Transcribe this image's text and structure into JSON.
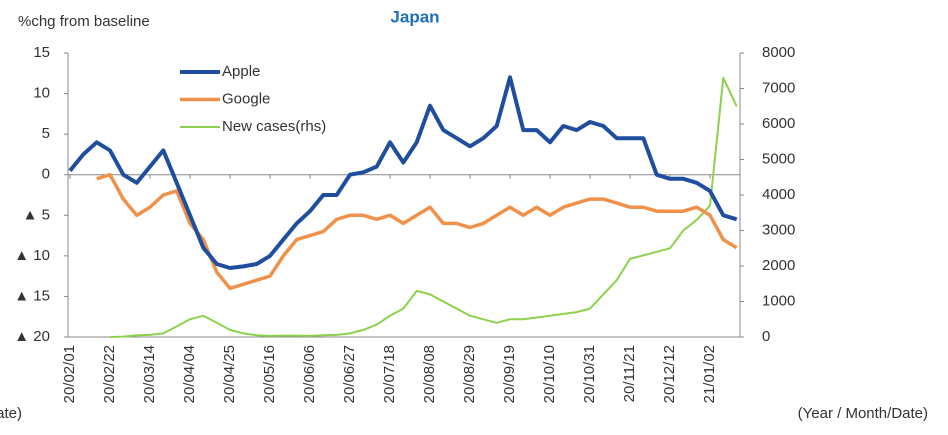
{
  "chart_data": {
    "type": "line",
    "title": "Japan",
    "y_label": "%chg from baseline",
    "x_label": "(Year / Month/Date)",
    "categories": [
      "20/02/01",
      null,
      null,
      "20/02/22",
      null,
      null,
      "20/03/14",
      null,
      null,
      "20/04/04",
      null,
      null,
      "20/04/25",
      null,
      null,
      "20/05/16",
      null,
      null,
      "20/06/06",
      null,
      null,
      "20/06/27",
      null,
      null,
      "20/07/18",
      null,
      null,
      "20/08/08",
      null,
      null,
      "20/08/29",
      null,
      null,
      "20/09/19",
      null,
      null,
      "20/10/10",
      null,
      null,
      "20/10/31",
      null,
      null,
      "20/11/21",
      null,
      null,
      "20/12/12",
      null,
      null,
      "21/01/02",
      null,
      null
    ],
    "ylim": [
      -20,
      15
    ],
    "yticks": [
      {
        "value": -20,
        "label": "▲ 20"
      },
      {
        "value": -15,
        "label": "▲ 15"
      },
      {
        "value": -10,
        "label": "▲ 10"
      },
      {
        "value": -5,
        "label": "▲ 5"
      },
      0,
      5,
      10,
      15
    ],
    "y2lim": [
      0,
      8000
    ],
    "y2ticks": [
      0,
      1000,
      2000,
      3000,
      4000,
      5000,
      6000,
      7000,
      8000
    ],
    "series": [
      {
        "name": "Apple",
        "color": "#1f4e9e",
        "values": [
          0.5,
          2.5,
          4,
          3,
          0,
          -1,
          1,
          3,
          -1,
          -5,
          -9,
          -11,
          -11.5,
          -11.3,
          -11,
          -10,
          -8,
          -6,
          -4.5,
          -2.5,
          -2.5,
          0,
          0.3,
          1,
          4,
          1.5,
          4,
          8.5,
          5.5,
          4.5,
          3.5,
          4.5,
          6,
          12,
          5.5,
          5.5,
          4,
          6,
          5.5,
          6.5,
          6,
          4.5,
          4.5,
          4.5,
          0,
          -0.5,
          -0.5,
          -1,
          -2,
          -5,
          -5.5
        ]
      },
      {
        "name": "Google",
        "color": "#f0914a",
        "values": [
          null,
          null,
          -0.5,
          0,
          -3,
          -5,
          -4,
          -2.5,
          -2,
          -6,
          -8,
          -12,
          -14,
          -13.5,
          -13,
          -12.5,
          -10,
          -8,
          -7.5,
          -7,
          -5.5,
          -5,
          -5,
          -5.5,
          -5,
          -6,
          -5,
          -4,
          -6,
          -6,
          -6.5,
          -6,
          -5,
          -4,
          -5,
          -4,
          -5,
          -4,
          -3.5,
          -3,
          -3,
          -3.5,
          -4,
          -4,
          -4.5,
          -4.5,
          -4.5,
          -4,
          -5,
          -8,
          -9
        ]
      },
      {
        "name": "New cases(rhs)",
        "color": "#8dd14d",
        "axis": "y2",
        "values": [
          null,
          null,
          null,
          0,
          10,
          50,
          60,
          100,
          300,
          500,
          600,
          400,
          200,
          100,
          50,
          30,
          40,
          40,
          30,
          50,
          60,
          100,
          200,
          350,
          600,
          800,
          1300,
          1200,
          1000,
          800,
          600,
          500,
          400,
          500,
          500,
          550,
          600,
          650,
          700,
          800,
          1200,
          1600,
          2200,
          2300,
          2400,
          2500,
          3000,
          3300,
          3700,
          7300,
          6500
        ]
      }
    ]
  }
}
